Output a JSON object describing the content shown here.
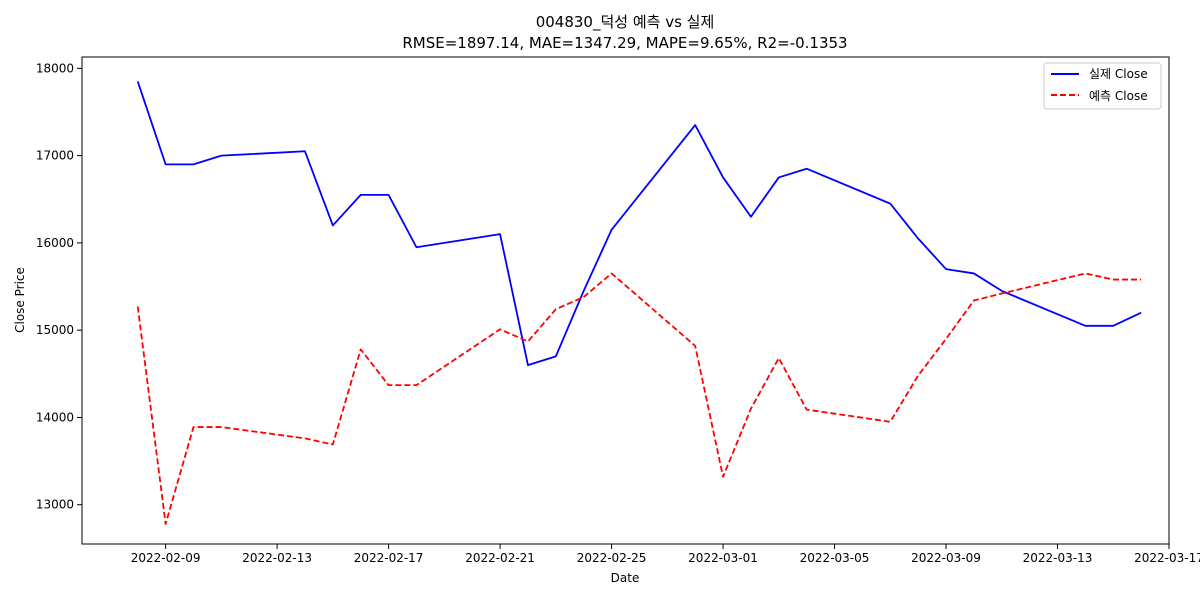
{
  "chart_data": {
    "type": "line",
    "title": "004830_덕성 예측 vs 실제",
    "subtitle": "RMSE=1897.14, MAE=1347.29, MAPE=9.65%, R2=-0.1353",
    "xlabel": "Date",
    "ylabel": "Close Price",
    "xlim": [
      "2022-02-06",
      "2022-03-17"
    ],
    "ylim": [
      12550,
      18130
    ],
    "x_ticks": [
      "2022-02-09",
      "2022-02-13",
      "2022-02-17",
      "2022-02-21",
      "2022-02-25",
      "2022-03-01",
      "2022-03-05",
      "2022-03-09",
      "2022-03-13",
      "2022-03-17"
    ],
    "y_ticks": [
      13000,
      14000,
      15000,
      16000,
      17000,
      18000
    ],
    "grid": false,
    "legend": "top-right",
    "x": [
      "2022-02-08",
      "2022-02-09",
      "2022-02-10",
      "2022-02-11",
      "2022-02-14",
      "2022-02-15",
      "2022-02-16",
      "2022-02-17",
      "2022-02-18",
      "2022-02-21",
      "2022-02-22",
      "2022-02-23",
      "2022-02-24",
      "2022-02-25",
      "2022-02-28",
      "2022-03-01",
      "2022-03-02",
      "2022-03-03",
      "2022-03-04",
      "2022-03-07",
      "2022-03-08",
      "2022-03-09",
      "2022-03-10",
      "2022-03-11",
      "2022-03-14",
      "2022-03-15",
      "2022-03-16"
    ],
    "series": [
      {
        "name": "실제 Close",
        "color": "#0000ff",
        "dash": "solid",
        "values": [
          17850,
          16900,
          16900,
          17000,
          17050,
          16200,
          16550,
          16550,
          15950,
          16100,
          14600,
          14700,
          15450,
          16150,
          17350,
          16750,
          16300,
          16750,
          16850,
          16450,
          16050,
          15700,
          15650,
          15450,
          15050,
          15050,
          15200
        ]
      },
      {
        "name": "예측 Close",
        "color": "#ff0000",
        "dash": "dashed",
        "values": [
          15270,
          12780,
          13890,
          13890,
          13760,
          13690,
          14780,
          14370,
          14370,
          15010,
          14870,
          15240,
          15380,
          15650,
          14820,
          13320,
          14100,
          14680,
          14090,
          13950,
          14480,
          14900,
          15340,
          15420,
          15650,
          15580,
          15580
        ]
      }
    ]
  }
}
